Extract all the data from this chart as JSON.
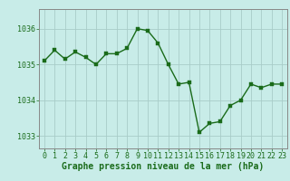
{
  "x": [
    0,
    1,
    2,
    3,
    4,
    5,
    6,
    7,
    8,
    9,
    10,
    11,
    12,
    13,
    14,
    15,
    16,
    17,
    18,
    19,
    20,
    21,
    22,
    23
  ],
  "y": [
    1035.1,
    1035.4,
    1035.15,
    1035.35,
    1035.2,
    1035.0,
    1035.3,
    1035.3,
    1035.45,
    1036.0,
    1035.95,
    1035.6,
    1035.0,
    1034.45,
    1034.5,
    1033.1,
    1033.35,
    1033.4,
    1033.85,
    1034.0,
    1034.45,
    1034.35,
    1034.45,
    1034.45
  ],
  "ylim": [
    1032.65,
    1036.55
  ],
  "yticks": [
    1033,
    1034,
    1035,
    1036
  ],
  "xticks": [
    0,
    1,
    2,
    3,
    4,
    5,
    6,
    7,
    8,
    9,
    10,
    11,
    12,
    13,
    14,
    15,
    16,
    17,
    18,
    19,
    20,
    21,
    22,
    23
  ],
  "xlabel": "Graphe pression niveau de la mer (hPa)",
  "line_color": "#1a6b1a",
  "marker_color": "#1a6b1a",
  "bg_color": "#c8ece8",
  "grid_color": "#a8ccc8",
  "border_color": "#888888",
  "text_color": "#1a6b1a",
  "xlabel_fontsize": 7.0,
  "tick_fontsize": 6.0,
  "line_width": 1.0,
  "marker_size": 2.5
}
